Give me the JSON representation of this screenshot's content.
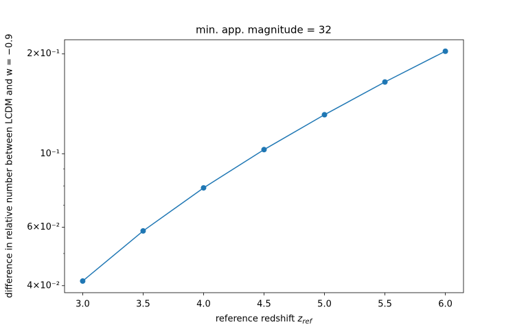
{
  "chart_data": {
    "type": "line",
    "title": "min. app. magnitude = 32",
    "xlabel": "reference redshift",
    "xlabel_symbol": "z",
    "xlabel_subscript": "ref",
    "ylabel": "difference in relative number between LCDM and w = −0.9",
    "x": [
      3.0,
      3.5,
      4.0,
      4.5,
      5.0,
      5.5,
      6.0
    ],
    "series": [
      {
        "color": "#1f77b4",
        "values": [
          0.0413,
          0.0585,
          0.0789,
          0.1029,
          0.1311,
          0.1646,
          0.2038
        ]
      }
    ],
    "xlim": [
      2.85,
      6.15
    ],
    "xticks": [
      {
        "value": 3.0,
        "label": "3.0"
      },
      {
        "value": 3.5,
        "label": "3.5"
      },
      {
        "value": 4.0,
        "label": "4.0"
      },
      {
        "value": 4.5,
        "label": "4.5"
      },
      {
        "value": 5.0,
        "label": "5.0"
      },
      {
        "value": 5.5,
        "label": "5.5"
      },
      {
        "value": 6.0,
        "label": "6.0"
      }
    ],
    "ylim": [
      0.0381,
      0.2207
    ],
    "yscale": "log",
    "yticks": [
      {
        "value": 0.04,
        "label": "4×10⁻²"
      },
      {
        "value": 0.06,
        "label": "6×10⁻²"
      },
      {
        "value": 0.1,
        "label": "10⁻¹"
      },
      {
        "value": 0.2,
        "label": "2×10⁻¹"
      }
    ],
    "yminorticks": [
      0.05,
      0.07,
      0.08,
      0.09
    ],
    "markers": true
  }
}
